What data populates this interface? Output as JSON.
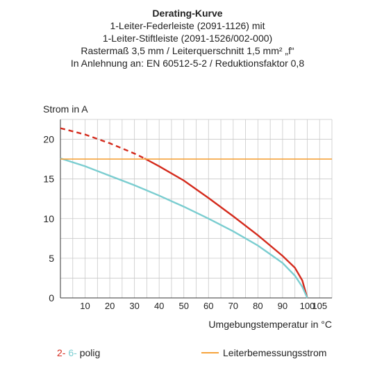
{
  "chart_data": {
    "type": "line",
    "title": "Derating-Kurve",
    "subtitle_lines": [
      "1-Leiter-Federleiste (2091-1126) mit",
      "1-Leiter-Stiftleiste (2091-1526/002-000)",
      "Rastermaß 3,5 mm / Leiterquerschnitt 1,5 mm² „f“",
      "In Anlehnung an: EN 60512-5-2 / Reduktionsfaktor 0,8"
    ],
    "ylabel": "Strom in A",
    "xlabel": "Umgebungstemperatur in °C",
    "xlim": [
      0,
      110
    ],
    "ylim": [
      0,
      22.5
    ],
    "x_ticks": [
      10,
      20,
      30,
      40,
      50,
      60,
      70,
      80,
      90,
      100,
      105
    ],
    "y_ticks": [
      0,
      5,
      10,
      15,
      20
    ],
    "grid": true,
    "series": [
      {
        "name": "2-polig",
        "color": "#D42A1C",
        "dashed_until_x": 34,
        "points": [
          [
            0,
            21.4
          ],
          [
            10,
            20.6
          ],
          [
            20,
            19.5
          ],
          [
            30,
            18.2
          ],
          [
            34,
            17.6
          ],
          [
            40,
            16.6
          ],
          [
            50,
            14.8
          ],
          [
            60,
            12.6
          ],
          [
            70,
            10.3
          ],
          [
            80,
            7.9
          ],
          [
            90,
            5.3
          ],
          [
            95,
            3.8
          ],
          [
            98,
            2.2
          ],
          [
            100,
            0
          ]
        ]
      },
      {
        "name": "6-polig",
        "color": "#7ACDD0",
        "points": [
          [
            0,
            17.6
          ],
          [
            10,
            16.6
          ],
          [
            20,
            15.4
          ],
          [
            30,
            14.2
          ],
          [
            40,
            12.9
          ],
          [
            50,
            11.5
          ],
          [
            60,
            10.0
          ],
          [
            70,
            8.4
          ],
          [
            80,
            6.6
          ],
          [
            90,
            4.4
          ],
          [
            95,
            2.8
          ],
          [
            98,
            1.4
          ],
          [
            100,
            0
          ]
        ]
      },
      {
        "name": "Leiterbemessungsstrom",
        "color": "#F6A33B",
        "points": [
          [
            0,
            17.5
          ],
          [
            110,
            17.5
          ]
        ]
      }
    ],
    "legend": {
      "poles_label_1": "2-",
      "poles_label_2": "6-",
      "poles_suffix": "polig",
      "rated_current": "Leiterbemessungsstrom"
    }
  }
}
